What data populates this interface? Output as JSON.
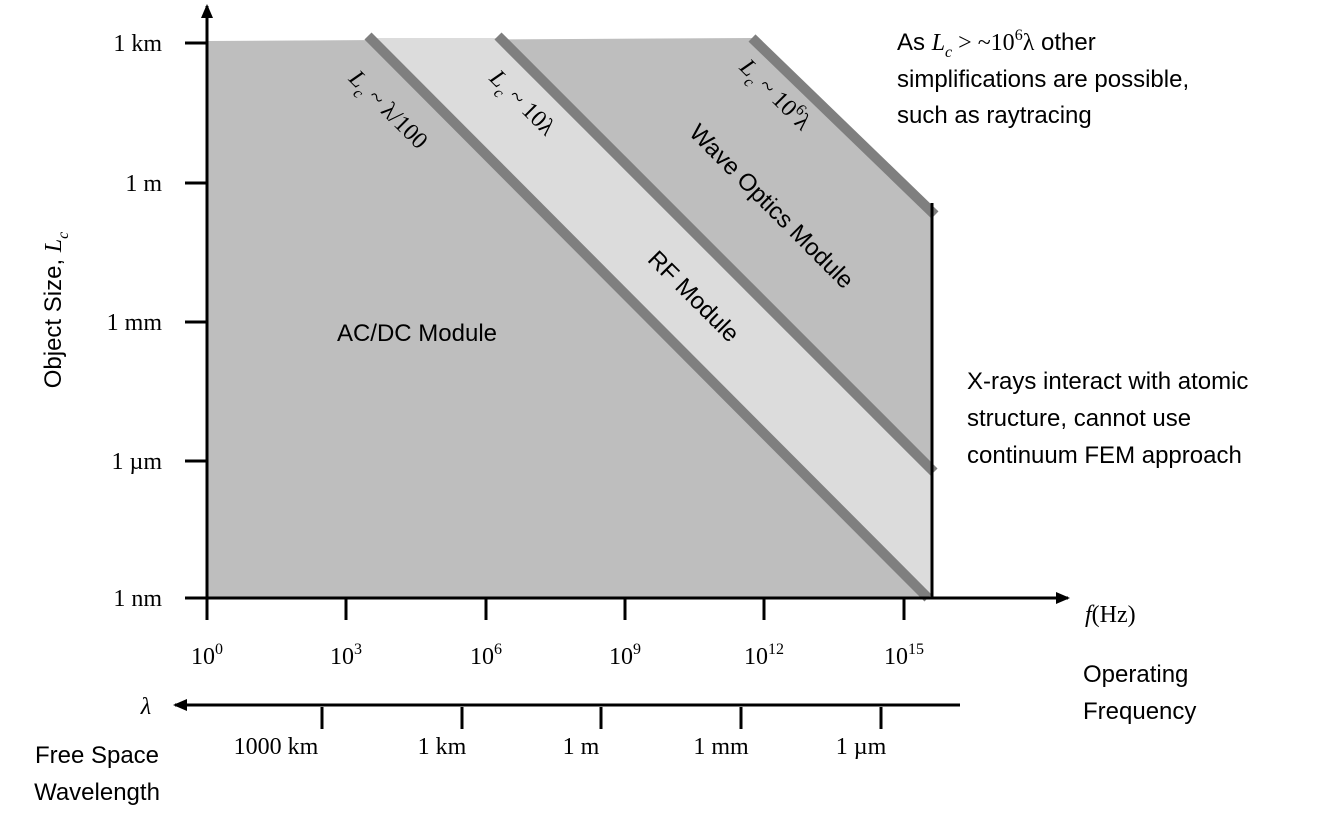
{
  "y_axis": {
    "label": "Object Size, ",
    "label_symbol": "L",
    "label_sub": "c",
    "ticks": [
      "1 km",
      "1 m",
      "1 mm",
      "1 µm",
      "1 nm"
    ]
  },
  "x_axis": {
    "ticks": [
      {
        "base": "10",
        "exp": "0"
      },
      {
        "base": "10",
        "exp": "3"
      },
      {
        "base": "10",
        "exp": "6"
      },
      {
        "base": "10",
        "exp": "9"
      },
      {
        "base": "10",
        "exp": "12"
      },
      {
        "base": "10",
        "exp": "15"
      }
    ],
    "symbol": "f",
    "unit": "(Hz)",
    "caption": [
      "Operating",
      "Frequency"
    ]
  },
  "wavelength_axis": {
    "symbol": "λ",
    "ticks": [
      "1000 km",
      "1 km",
      "1 m",
      "1 mm",
      "1 µm"
    ],
    "caption": [
      "Free Space",
      "Wavelength"
    ]
  },
  "bands": [
    {
      "symbol": "L",
      "sub": "c",
      "relation": " ~ λ/100"
    },
    {
      "symbol": "L",
      "sub": "c",
      "relation": " ~ 10λ"
    },
    {
      "symbol": "L",
      "sub": "c",
      "relation": " ~ 10",
      "exp": "6",
      "tail": "λ"
    }
  ],
  "regions": [
    "AC/DC Module",
    "RF Module",
    "Wave Optics Module"
  ],
  "notes": {
    "upper": {
      "prefix": "As ",
      "symbol": "L",
      "sub": "c",
      "relation": " > ~10",
      "exp": "6",
      "tail": "λ",
      "lines": [
        "  other",
        "simplifications are possible,",
        "such as  raytracing"
      ]
    },
    "xrays": [
      "X-rays interact with atomic",
      "structure, cannot use",
      "continuum FEM approach"
    ]
  }
}
